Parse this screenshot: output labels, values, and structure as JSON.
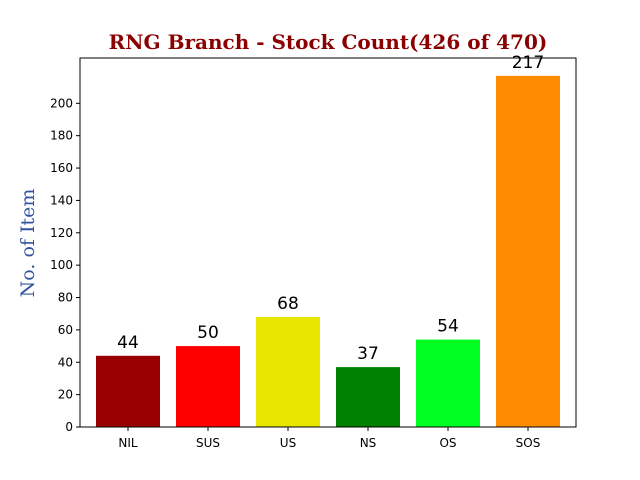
{
  "chart_data": {
    "type": "bar",
    "title": "RNG Branch - Stock Count(426 of 470)",
    "ylabel": "No. of Item",
    "xlabel": "",
    "categories": [
      "NIL",
      "SUS",
      "US",
      "NS",
      "OS",
      "SOS"
    ],
    "values": [
      44,
      50,
      68,
      37,
      54,
      217
    ],
    "bar_colors": [
      "#990000",
      "#ff0000",
      "#e6e600",
      "#008000",
      "#00ff20",
      "#ff8c00"
    ],
    "ylim": [
      0,
      228
    ],
    "yticks": [
      0,
      20,
      40,
      60,
      80,
      100,
      120,
      140,
      160,
      180,
      200
    ],
    "grid": false,
    "title_color": "#8b0000",
    "ylabel_color": "#3355a0"
  }
}
